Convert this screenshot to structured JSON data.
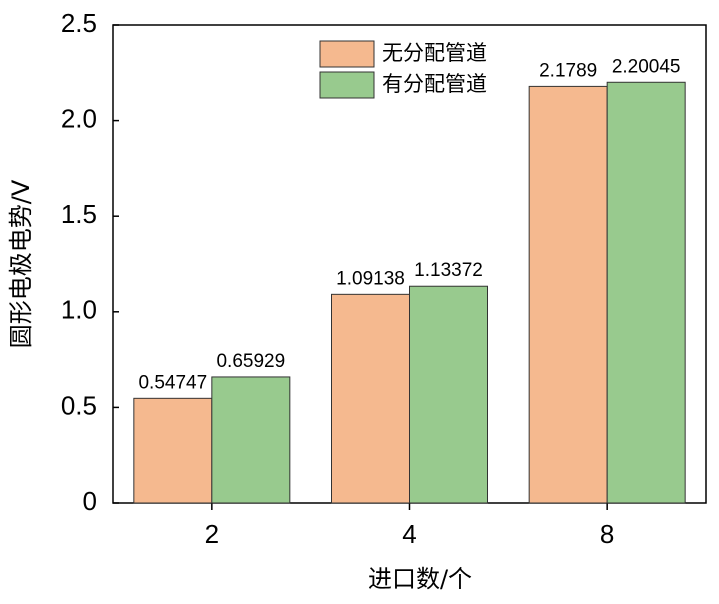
{
  "chart_data": {
    "type": "bar",
    "xlabel": "进口数/个",
    "ylabel": "圆形电极电势/V",
    "categories": [
      "2",
      "4",
      "8"
    ],
    "series": [
      {
        "name": "无分配管道",
        "color": "#f5b98f",
        "values": [
          0.54747,
          1.09138,
          2.1789
        ]
      },
      {
        "name": "有分配管道",
        "color": "#98ca8e",
        "values": [
          0.65929,
          1.13372,
          2.20045
        ]
      }
    ],
    "ylim": [
      0,
      2.5
    ],
    "yticks": [
      0,
      0.5,
      {
        "value": 1,
        "label": "1.0"
      },
      1.5,
      {
        "value": 2,
        "label": "2.0"
      },
      2.5
    ],
    "grid": false
  }
}
